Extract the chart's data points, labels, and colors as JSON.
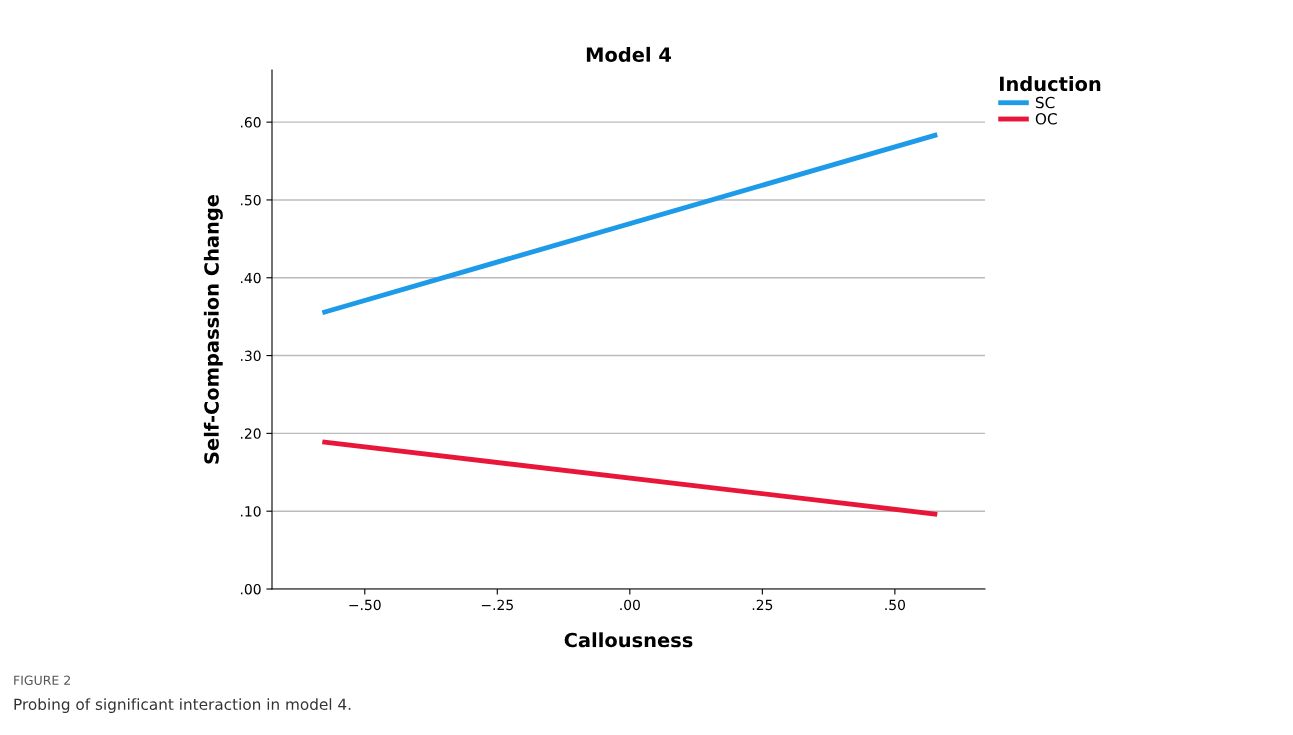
{
  "chart_data": {
    "type": "line",
    "title": "Model 4",
    "xlabel": "Callousness",
    "ylabel": "Self-Compassion Change",
    "legend_title": "Induction",
    "annotations": [
      "FIGURE 2",
      "Probing of significant interaction in model 4."
    ],
    "x": [
      -0.58,
      0.58
    ],
    "series": [
      {
        "name": "SC",
        "color": "#1e9be8",
        "values": [
          0.355,
          0.584
        ]
      },
      {
        "name": "OC",
        "color": "#e8173a",
        "values": [
          0.189,
          0.096
        ]
      }
    ],
    "xlim": [
      -0.675,
      0.67
    ],
    "ylim": [
      0,
      0.667
    ],
    "xticks": [
      {
        "value": -0.5,
        "label": "−.50"
      },
      {
        "value": -0.25,
        "label": "−.25"
      },
      {
        "value": 0,
        "label": ".00"
      },
      {
        "value": 0.25,
        "label": ".25"
      },
      {
        "value": 0.5,
        "label": ".50"
      }
    ],
    "yticks": [
      {
        "value": 0,
        "label": ".00"
      },
      {
        "value": 0.1,
        "label": ".10"
      },
      {
        "value": 0.2,
        "label": ".20"
      },
      {
        "value": 0.3,
        "label": ".30"
      },
      {
        "value": 0.4,
        "label": ".40"
      },
      {
        "value": 0.5,
        "label": ".50"
      },
      {
        "value": 0.6,
        "label": ".60"
      }
    ],
    "grid": "y",
    "legend": "top right",
    "marker": "none",
    "line_style": "solid"
  }
}
